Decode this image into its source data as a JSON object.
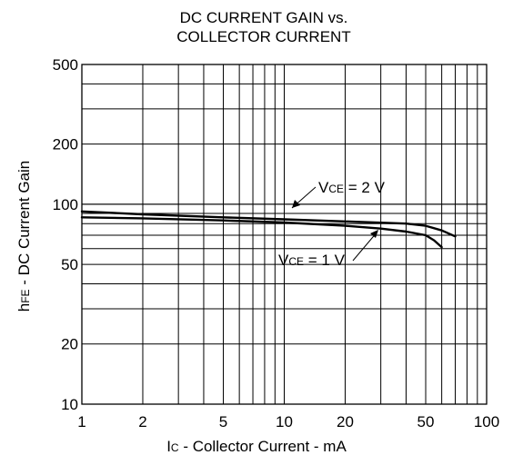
{
  "chart_data": {
    "type": "line",
    "title_line1": "DC CURRENT GAIN vs.",
    "title_line2": "COLLECTOR CURRENT",
    "xlabel": {
      "main": "I",
      "sub": "C",
      "rest": " - Collector Current - mA"
    },
    "ylabel": {
      "main": "h",
      "sub": "FE",
      "rest": " - DC Current Gain"
    },
    "xscale": "log",
    "yscale": "log",
    "xlim": [
      1,
      100
    ],
    "ylim": [
      10,
      500
    ],
    "grid": true,
    "x_ticks": [
      1,
      2,
      5,
      10,
      20,
      50,
      100
    ],
    "x_tick_labels": [
      "1",
      "2",
      "5",
      "10",
      "20",
      "50",
      "100"
    ],
    "y_ticks": [
      10,
      20,
      50,
      100,
      200,
      500
    ],
    "y_tick_labels": [
      "10",
      "20",
      "50",
      "100",
      "200",
      "500"
    ],
    "series": [
      {
        "name": "VCE = 2 V",
        "x": [
          1,
          2,
          5,
          10,
          20,
          40,
          50,
          60,
          70
        ],
        "y": [
          92,
          89,
          86,
          84,
          82,
          80,
          78,
          74,
          69
        ]
      },
      {
        "name": "VCE = 1 V",
        "x": [
          1,
          2,
          5,
          10,
          20,
          30,
          40,
          50,
          55,
          60
        ],
        "y": [
          86,
          85,
          83,
          81,
          78,
          75.5,
          73,
          70,
          66,
          61
        ]
      }
    ],
    "annotations": [
      {
        "main": "V",
        "sub": "CE",
        "rest": " = 2 V"
      },
      {
        "main": "V",
        "sub": "CE",
        "rest": " = 1 V"
      }
    ]
  }
}
